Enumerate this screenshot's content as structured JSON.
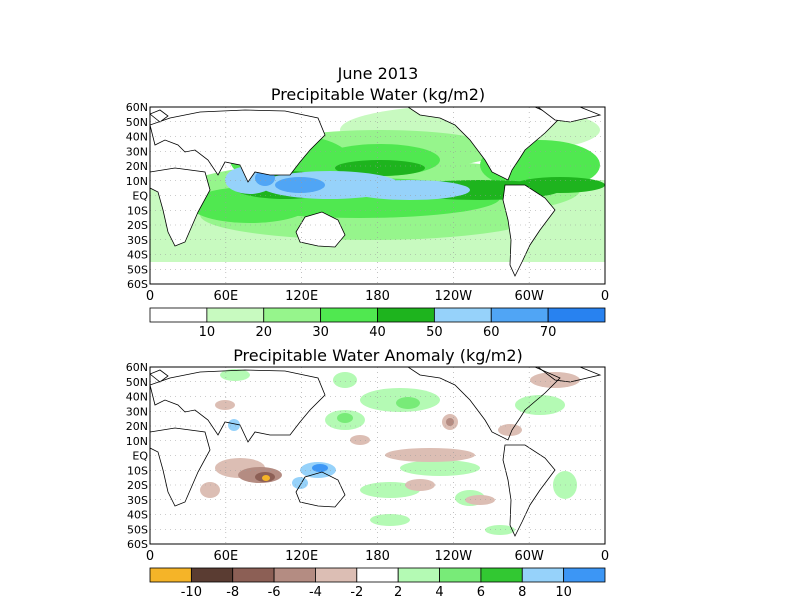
{
  "top_panel": {
    "title_line1": "June 2013",
    "title_line2": "Precipitable Water (kg/m2)",
    "lat_labels": [
      "60N",
      "50N",
      "40N",
      "30N",
      "20N",
      "10N",
      "EQ",
      "10S",
      "20S",
      "30S",
      "40S",
      "50S",
      "60S"
    ],
    "lon_labels": [
      "0",
      "60E",
      "120E",
      "180",
      "120W",
      "60W",
      "0"
    ],
    "colorbar": {
      "colors": [
        "#ffffff",
        "#c8fac0",
        "#96f58c",
        "#50e850",
        "#1eb41e",
        "#96d2fa",
        "#50a5f5",
        "#2882f0"
      ],
      "labels": [
        "10",
        "20",
        "30",
        "40",
        "50",
        "60",
        "70"
      ]
    }
  },
  "bottom_panel": {
    "title": "Precipitable Water Anomaly (kg/m2)",
    "lat_labels": [
      "60N",
      "50N",
      "40N",
      "30N",
      "20N",
      "10N",
      "EQ",
      "10S",
      "20S",
      "30S",
      "40S",
      "50S",
      "60S"
    ],
    "lon_labels": [
      "0",
      "60E",
      "120E",
      "180",
      "120W",
      "60W",
      "0"
    ],
    "colorbar": {
      "colors": [
        "#f5b428",
        "#5a3c32",
        "#8c5f55",
        "#b48c82",
        "#dcbeb4",
        "#ffffff",
        "#b4fab4",
        "#78eb78",
        "#32c832",
        "#96d2fa",
        "#3c96f5"
      ],
      "labels": [
        "-10",
        "-8",
        "-6",
        "-4",
        "-2",
        "2",
        "4",
        "6",
        "8",
        "10"
      ]
    }
  },
  "colors": {
    "land_outline": "#000000",
    "grid": "#9a9a9a"
  }
}
